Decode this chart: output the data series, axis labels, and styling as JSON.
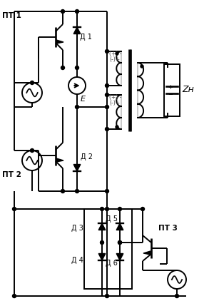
{
  "bg_color": "#ffffff",
  "line_color": "#000000",
  "line_width": 1.4,
  "labels": {
    "PT1": "ПТ 1",
    "PT2": "ПТ 2",
    "PT3": "ПТ 3",
    "D1": "Д 1",
    "D2": "Д 2",
    "D3": "Д 3",
    "D4": "Д 4",
    "D5": "Д 5",
    "D6": "Д 6",
    "E": "E",
    "Zn": "Zн"
  }
}
